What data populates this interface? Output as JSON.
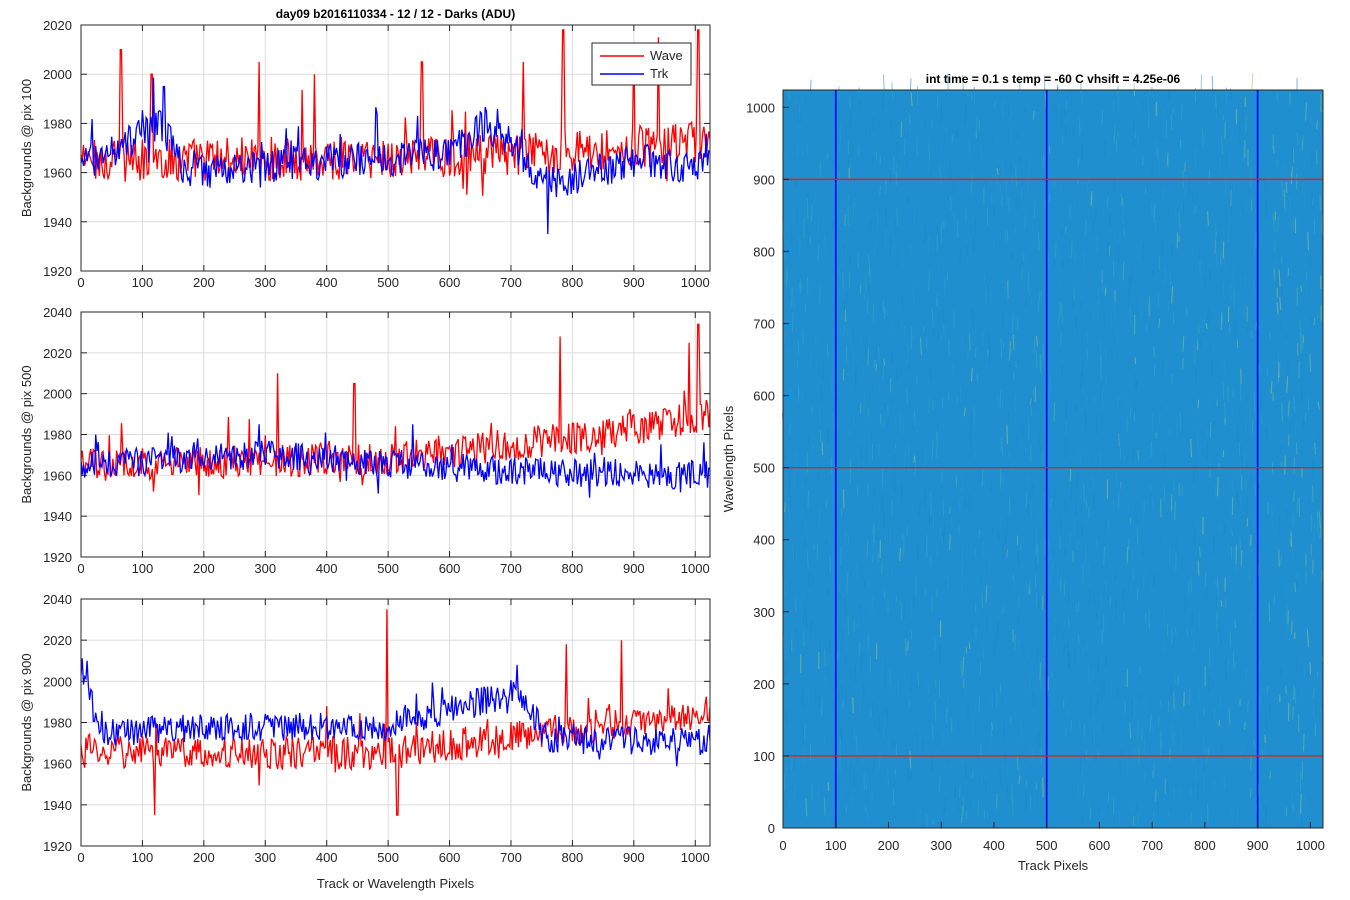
{
  "figure_title": "day09 b2016110334 - 12 / 12 - Darks (ADU)",
  "chart_data": [
    {
      "type": "line",
      "panel": "top-left",
      "title": "day09 b2016110334 - 12 / 12 - Darks (ADU)",
      "ylabel": "Backgrounds @ pix 100",
      "xlabel": "",
      "xlim": [
        0,
        1024
      ],
      "ylim": [
        1920,
        2020
      ],
      "xticks": [
        0,
        100,
        200,
        300,
        400,
        500,
        600,
        700,
        800,
        900,
        1000
      ],
      "yticks": [
        1920,
        1940,
        1960,
        1980,
        2000,
        2020
      ],
      "grid": true,
      "legend": {
        "placement": "top-right",
        "entries": [
          "Wave",
          "Trk"
        ]
      },
      "series": [
        {
          "name": "Wave",
          "color": "#ff0000",
          "base": 1965,
          "amp": 9,
          "spikes": [
            [
              65,
              2010
            ],
            [
              115,
              2000
            ],
            [
              290,
              2005
            ],
            [
              380,
              2000
            ],
            [
              555,
              2005
            ],
            [
              720,
              2005
            ],
            [
              785,
              2018
            ],
            [
              900,
              2012
            ],
            [
              940,
              2015
            ],
            [
              1005,
              2018
            ]
          ],
          "trend": [
            [
              0,
              1965
            ],
            [
              500,
              1966
            ],
            [
              750,
              1968
            ],
            [
              1024,
              1972
            ]
          ]
        },
        {
          "name": "Trk",
          "color": "#0000ff",
          "base": 1966,
          "amp": 7,
          "spikes": [
            [
              135,
              1995
            ],
            [
              660,
              1985
            ],
            [
              760,
              1935
            ]
          ],
          "trend": [
            [
              0,
              1962
            ],
            [
              130,
              1980
            ],
            [
              170,
              1960
            ],
            [
              600,
              1968
            ],
            [
              650,
              1978
            ],
            [
              690,
              1975
            ],
            [
              760,
              1955
            ],
            [
              900,
              1965
            ],
            [
              1024,
              1962
            ]
          ]
        }
      ]
    },
    {
      "type": "line",
      "panel": "middle-left",
      "ylabel": "Backgrounds @ pix 500",
      "xlabel": "",
      "xlim": [
        0,
        1024
      ],
      "ylim": [
        1920,
        2040
      ],
      "xticks": [
        0,
        100,
        200,
        300,
        400,
        500,
        600,
        700,
        800,
        900,
        1000
      ],
      "yticks": [
        1920,
        1940,
        1960,
        1980,
        2000,
        2020,
        2040
      ],
      "grid": true,
      "series": [
        {
          "name": "Wave",
          "color": "#ff0000",
          "base": 1966,
          "amp": 8,
          "spikes": [
            [
              320,
              2010
            ],
            [
              445,
              2005
            ],
            [
              780,
              2028
            ],
            [
              990,
              2025
            ],
            [
              1005,
              2034
            ]
          ],
          "trend": [
            [
              0,
              1965
            ],
            [
              500,
              1968
            ],
            [
              700,
              1975
            ],
            [
              850,
              1980
            ],
            [
              1024,
              1990
            ]
          ]
        },
        {
          "name": "Trk",
          "color": "#0000ff",
          "base": 1965,
          "amp": 7,
          "spikes": [
            [
              290,
              1985
            ],
            [
              540,
              1985
            ]
          ],
          "trend": [
            [
              0,
              1965
            ],
            [
              300,
              1970
            ],
            [
              500,
              1966
            ],
            [
              700,
              1962
            ],
            [
              1024,
              1960
            ]
          ]
        }
      ]
    },
    {
      "type": "line",
      "panel": "bottom-left",
      "ylabel": "Backgrounds @ pix 900",
      "xlabel": "Track or Wavelength Pixels",
      "xlim": [
        0,
        1024
      ],
      "ylim": [
        1920,
        2040
      ],
      "xticks": [
        0,
        100,
        200,
        300,
        400,
        500,
        600,
        700,
        800,
        900,
        1000
      ],
      "yticks": [
        1920,
        1940,
        1960,
        1980,
        2000,
        2020,
        2040
      ],
      "grid": true,
      "series": [
        {
          "name": "Wave",
          "color": "#ff0000",
          "base": 1965,
          "amp": 8,
          "spikes": [
            [
              498,
              2035
            ],
            [
              515,
              1935
            ],
            [
              120,
              1935
            ],
            [
              790,
              2018
            ],
            [
              880,
              2020
            ]
          ],
          "trend": [
            [
              0,
              1966
            ],
            [
              500,
              1965
            ],
            [
              750,
              1975
            ],
            [
              1024,
              1985
            ]
          ]
        },
        {
          "name": "Trk",
          "color": "#0000ff",
          "base": 1972,
          "amp": 7,
          "spikes": [
            [
              10,
              2010
            ],
            [
              710,
              2008
            ]
          ],
          "trend": [
            [
              0,
              2000
            ],
            [
              40,
              1975
            ],
            [
              200,
              1978
            ],
            [
              500,
              1978
            ],
            [
              710,
              1995
            ],
            [
              760,
              1972
            ],
            [
              1024,
              1970
            ]
          ]
        }
      ]
    },
    {
      "type": "heatmap",
      "panel": "right",
      "title": "int time = 0.1 s   temp = -60 C   vhsift = 4.25e-06",
      "xlabel": "Track Pixels",
      "ylabel": "Wavelength Pixels",
      "xlim": [
        0,
        1024
      ],
      "ylim": [
        0,
        1024
      ],
      "xticks": [
        0,
        100,
        200,
        300,
        400,
        500,
        600,
        700,
        800,
        900,
        1000
      ],
      "yticks": [
        0,
        100,
        200,
        300,
        400,
        500,
        600,
        700,
        800,
        900,
        1000
      ],
      "colormap": "parula",
      "base_color": "#1f8fcf",
      "overlay_lines": {
        "horizontal_red": [
          100,
          500,
          900
        ],
        "vertical_blue": [
          100,
          500,
          900
        ]
      }
    }
  ]
}
